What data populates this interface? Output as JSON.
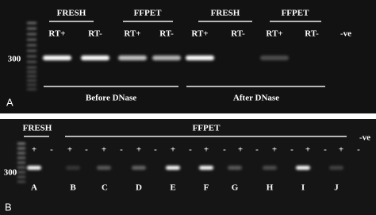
{
  "panel_a": {
    "label": "A",
    "marker": "300",
    "negative": "-ve",
    "groups": [
      "FRESH",
      "FFPET",
      "FRESH",
      "FFPET"
    ],
    "lanes": [
      "RT+",
      "RT-",
      "RT+",
      "RT-",
      "RT+",
      "RT-",
      "RT+",
      "RT-"
    ],
    "sections": [
      "Before DNase",
      "After DNase"
    ]
  },
  "panel_b": {
    "label": "B",
    "marker": "300",
    "negative": "-ve",
    "groups": [
      "FRESH",
      "FFPET"
    ],
    "signs": [
      "+",
      "-",
      "+",
      "-",
      "+",
      "-",
      "+",
      "-",
      "+",
      "-",
      "+",
      "-",
      "+",
      "-",
      "+",
      "-",
      "+",
      "-",
      "+",
      "-"
    ],
    "samples": [
      "A",
      "B",
      "C",
      "D",
      "E",
      "F",
      "G",
      "H",
      "I",
      "J"
    ]
  }
}
